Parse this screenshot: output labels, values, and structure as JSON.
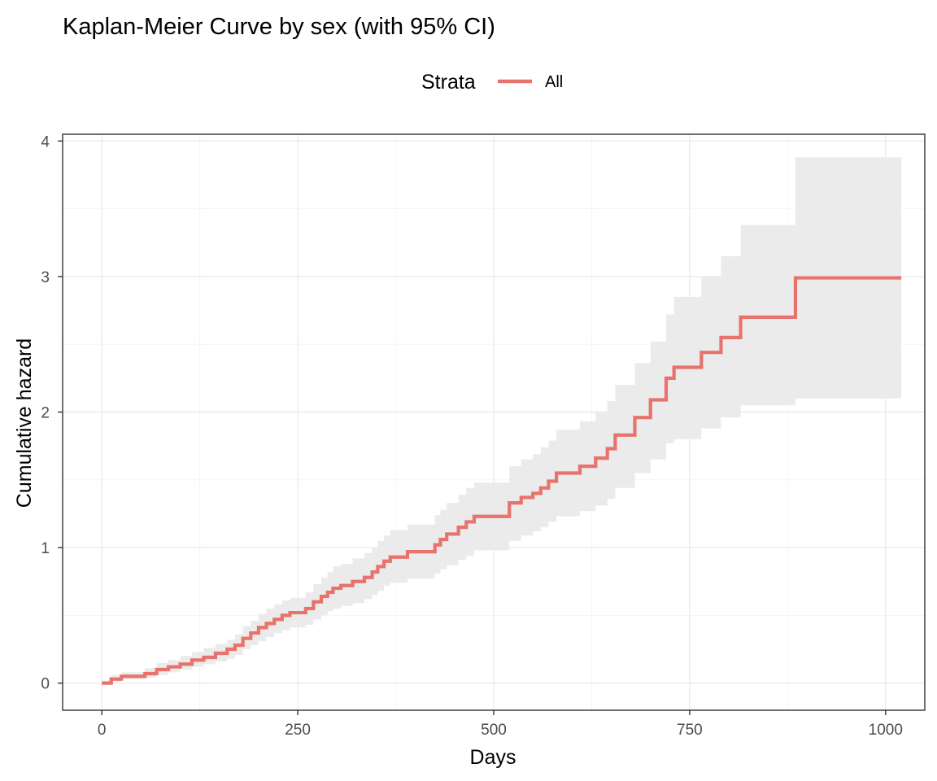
{
  "chart_data": {
    "type": "line",
    "title": "Kaplan-Meier Curve by sex (with 95% CI)",
    "xlabel": "Days",
    "ylabel": "Cumulative hazard",
    "xlim": [
      -50,
      1050
    ],
    "ylim": [
      -0.2,
      4.05
    ],
    "x_ticks": [
      0,
      250,
      500,
      750,
      1000
    ],
    "x_tick_labels": [
      "0",
      "250",
      "500",
      "750",
      "1000"
    ],
    "y_ticks": [
      0,
      1,
      2,
      3,
      4
    ],
    "y_tick_labels": [
      "0",
      "1",
      "2",
      "3",
      "4"
    ],
    "grid": true,
    "legend": {
      "title": "Strata",
      "position": "top",
      "entries": [
        {
          "name": "All",
          "color": "#e8736c"
        }
      ]
    },
    "colors": {
      "line": "#e8736c",
      "ci_band": "#ebebeb"
    },
    "series": [
      {
        "name": "All",
        "step": true,
        "x": [
          0,
          12,
          25,
          55,
          70,
          85,
          100,
          115,
          130,
          145,
          160,
          170,
          180,
          190,
          200,
          210,
          220,
          230,
          240,
          250,
          260,
          270,
          280,
          288,
          295,
          305,
          320,
          335,
          345,
          352,
          360,
          368,
          375,
          390,
          410,
          425,
          432,
          440,
          455,
          465,
          475,
          515,
          520,
          535,
          550,
          560,
          570,
          580,
          610,
          630,
          645,
          655,
          680,
          700,
          720,
          730,
          735,
          765,
          790,
          815,
          885,
          1020
        ],
        "y": [
          0,
          0.03,
          0.05,
          0.07,
          0.1,
          0.12,
          0.14,
          0.17,
          0.19,
          0.22,
          0.25,
          0.28,
          0.33,
          0.37,
          0.41,
          0.44,
          0.47,
          0.5,
          0.52,
          0.52,
          0.55,
          0.6,
          0.64,
          0.67,
          0.7,
          0.72,
          0.75,
          0.78,
          0.82,
          0.86,
          0.9,
          0.93,
          0.93,
          0.97,
          0.97,
          1.02,
          1.06,
          1.1,
          1.15,
          1.19,
          1.23,
          1.23,
          1.33,
          1.37,
          1.4,
          1.44,
          1.49,
          1.55,
          1.6,
          1.66,
          1.73,
          1.83,
          1.96,
          2.09,
          2.25,
          2.33,
          2.33,
          2.44,
          2.55,
          2.7,
          2.99,
          2.99
        ],
        "ci_lower": [
          0,
          0.01,
          0.03,
          0.04,
          0.06,
          0.08,
          0.1,
          0.12,
          0.14,
          0.16,
          0.18,
          0.21,
          0.25,
          0.28,
          0.31,
          0.34,
          0.37,
          0.39,
          0.41,
          0.41,
          0.43,
          0.47,
          0.5,
          0.53,
          0.55,
          0.57,
          0.59,
          0.62,
          0.65,
          0.68,
          0.72,
          0.74,
          0.74,
          0.77,
          0.77,
          0.81,
          0.84,
          0.87,
          0.91,
          0.94,
          0.98,
          0.98,
          1.05,
          1.09,
          1.12,
          1.15,
          1.19,
          1.23,
          1.27,
          1.31,
          1.36,
          1.44,
          1.55,
          1.65,
          1.77,
          1.8,
          1.8,
          1.88,
          1.96,
          2.05,
          2.1,
          2.1
        ],
        "ci_upper": [
          0.02,
          0.06,
          0.08,
          0.11,
          0.15,
          0.17,
          0.2,
          0.23,
          0.26,
          0.29,
          0.32,
          0.36,
          0.42,
          0.46,
          0.51,
          0.55,
          0.58,
          0.61,
          0.63,
          0.63,
          0.67,
          0.73,
          0.78,
          0.82,
          0.86,
          0.88,
          0.92,
          0.96,
          1.0,
          1.05,
          1.09,
          1.13,
          1.13,
          1.17,
          1.17,
          1.24,
          1.28,
          1.33,
          1.39,
          1.44,
          1.48,
          1.48,
          1.6,
          1.65,
          1.69,
          1.74,
          1.79,
          1.87,
          1.93,
          2.0,
          2.08,
          2.2,
          2.36,
          2.52,
          2.72,
          2.85,
          2.85,
          3.0,
          3.15,
          3.38,
          3.88,
          3.88
        ]
      }
    ]
  }
}
